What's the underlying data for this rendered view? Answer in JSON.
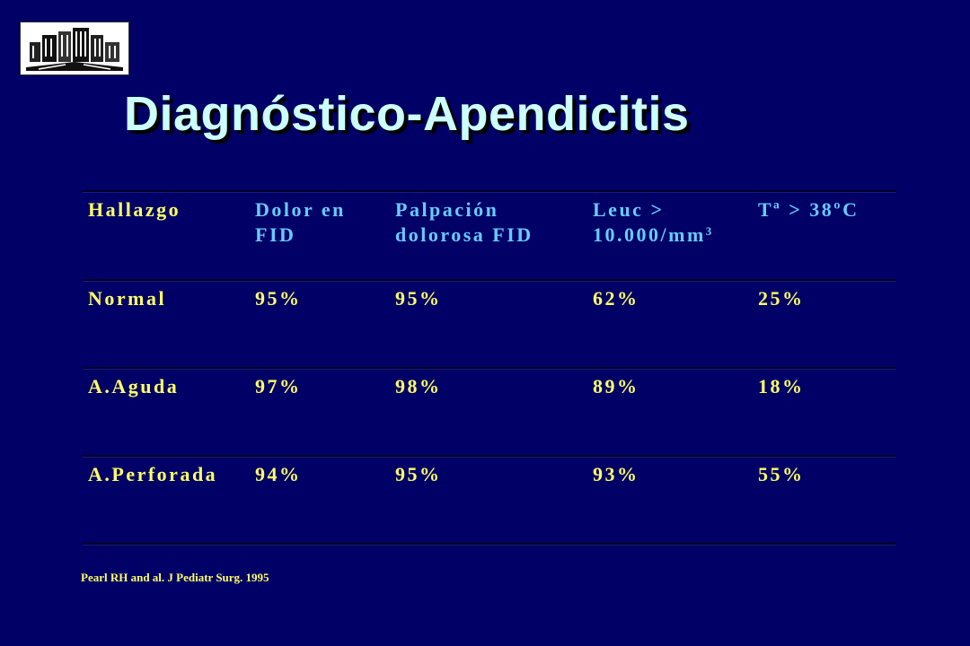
{
  "logo": {
    "icon": "hospital-building-icon"
  },
  "title": "Diagnóstico-Apendicitis",
  "table": {
    "headers": [
      {
        "line1": "Hallazgo",
        "line2": ""
      },
      {
        "line1": "Dolor en",
        "line2": "FID"
      },
      {
        "line1": "Palpación",
        "line2": "dolorosa FID"
      },
      {
        "line1": "Leuc >",
        "line2": "10.000/mm",
        "sup": "3"
      },
      {
        "line1": "Tª > 38ºC",
        "line2": ""
      }
    ],
    "rows": [
      [
        "Normal",
        "95%",
        "95%",
        "62%",
        "25%"
      ],
      [
        "A.Aguda",
        "97%",
        "98%",
        "89%",
        "18%"
      ],
      [
        "A.Perforada",
        "94%",
        "95%",
        "93%",
        "55%"
      ]
    ]
  },
  "citation": "Pearl RH and al. J Pediatr Surg. 1995",
  "colors": {
    "background": "#000066",
    "title": "#ccffff",
    "yellow_text": "#ffff66",
    "cyan_text": "#66ccff"
  }
}
